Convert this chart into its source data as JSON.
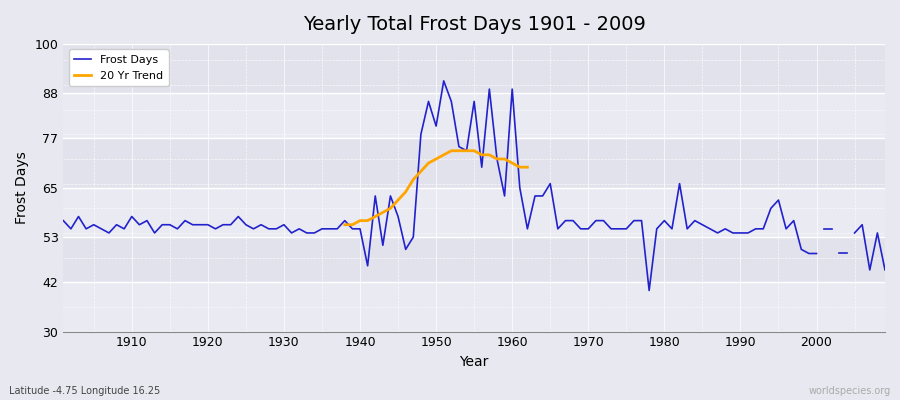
{
  "title": "Yearly Total Frost Days 1901 - 2009",
  "xlabel": "Year",
  "ylabel": "Frost Days",
  "xlim": [
    1901,
    2009
  ],
  "ylim": [
    30,
    100
  ],
  "yticks": [
    30,
    42,
    53,
    65,
    77,
    88,
    100
  ],
  "xticks": [
    1910,
    1920,
    1930,
    1940,
    1950,
    1960,
    1970,
    1980,
    1990,
    2000
  ],
  "bg_color": "#e8e8f0",
  "plot_bg_color": "#eaeaf2",
  "line_color": "#2222cc",
  "trend_color": "#ffa500",
  "legend_labels": [
    "Frost Days",
    "20 Yr Trend"
  ],
  "footer_left": "Latitude -4.75 Longitude 16.25",
  "footer_right": "worldspecies.org",
  "frost_days_segments": [
    {
      "years": [
        1901,
        1902,
        1903,
        1904,
        1905,
        1906,
        1907,
        1908,
        1909,
        1910,
        1911,
        1912,
        1913,
        1914,
        1915,
        1916,
        1917,
        1918,
        1919,
        1920,
        1921,
        1922,
        1923,
        1924,
        1925,
        1926,
        1927,
        1928,
        1929,
        1930,
        1931,
        1932,
        1933,
        1934,
        1935,
        1936,
        1937,
        1938,
        1939,
        1940,
        1941,
        1942,
        1943,
        1944,
        1945,
        1946,
        1947,
        1948,
        1949,
        1950,
        1951,
        1952,
        1953,
        1954,
        1955,
        1956,
        1957,
        1958,
        1959,
        1960,
        1961,
        1962,
        1963,
        1964,
        1965,
        1966,
        1967,
        1968,
        1969,
        1970,
        1971,
        1972,
        1973,
        1974,
        1975,
        1976,
        1977,
        1978,
        1979,
        1980,
        1981,
        1982,
        1983,
        1984,
        1985,
        1986,
        1987,
        1988,
        1989,
        1990,
        1991,
        1992,
        1993,
        1994,
        1995,
        1996,
        1997,
        1998,
        1999,
        2000
      ],
      "values": [
        57,
        55,
        58,
        55,
        56,
        55,
        54,
        56,
        55,
        58,
        56,
        57,
        54,
        56,
        56,
        55,
        57,
        56,
        56,
        56,
        55,
        56,
        56,
        58,
        56,
        55,
        56,
        55,
        55,
        56,
        54,
        55,
        54,
        54,
        55,
        55,
        55,
        57,
        55,
        55,
        46,
        63,
        51,
        63,
        58,
        50,
        53,
        78,
        86,
        80,
        91,
        86,
        75,
        74,
        86,
        70,
        89,
        72,
        63,
        89,
        65,
        55,
        63,
        63,
        66,
        55,
        57,
        57,
        55,
        55,
        57,
        57,
        55,
        55,
        55,
        57,
        57,
        40,
        55,
        57,
        55,
        66,
        55,
        57,
        56,
        55,
        54,
        55,
        54,
        54,
        54,
        55,
        55,
        60,
        62,
        55,
        57,
        50,
        49,
        49
      ]
    },
    {
      "years": [
        2001,
        2002
      ],
      "values": [
        55,
        55
      ]
    },
    {
      "years": [
        2003,
        2004
      ],
      "values": [
        49,
        49
      ]
    },
    {
      "years": [
        2005,
        2006,
        2007,
        2008,
        2009
      ],
      "values": [
        54,
        56,
        45,
        54,
        45
      ]
    }
  ],
  "trend_years": [
    1938,
    1939,
    1940,
    1941,
    1942,
    1943,
    1944,
    1945,
    1946,
    1947,
    1948,
    1949,
    1950,
    1951,
    1952,
    1953,
    1954,
    1955,
    1956,
    1957,
    1958,
    1959,
    1960,
    1961,
    1962
  ],
  "trend_values": [
    56,
    56,
    57,
    57,
    58,
    59,
    60,
    62,
    64,
    67,
    69,
    71,
    72,
    73,
    74,
    74,
    74,
    74,
    73,
    73,
    72,
    72,
    71,
    70,
    70
  ]
}
